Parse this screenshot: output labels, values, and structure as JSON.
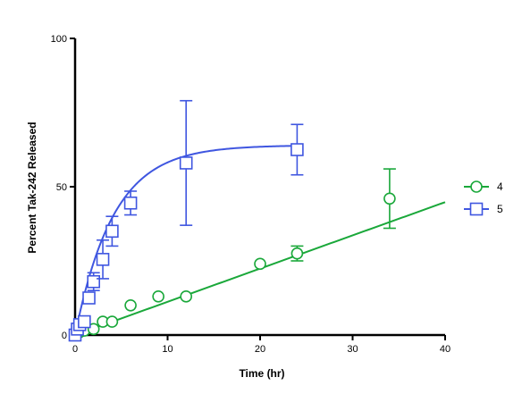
{
  "chart_data": {
    "type": "scatter",
    "title": "",
    "xlabel": "Time (hr)",
    "ylabel": "Percent Tak-242 Released",
    "xlim": [
      0,
      40
    ],
    "ylim": [
      0,
      100
    ],
    "x_ticks": [
      0,
      10,
      20,
      30,
      40
    ],
    "y_ticks": [
      0,
      50,
      100
    ],
    "grid": false,
    "legend_position": "right",
    "series": [
      {
        "name": "4",
        "marker": "circle",
        "color": "#1aa83a",
        "points": [
          {
            "x": 0.25,
            "y": 0.5
          },
          {
            "x": 0.5,
            "y": 1
          },
          {
            "x": 1,
            "y": 1.5
          },
          {
            "x": 2,
            "y": 2
          },
          {
            "x": 3,
            "y": 4.5
          },
          {
            "x": 4,
            "y": 4.5
          },
          {
            "x": 6,
            "y": 10
          },
          {
            "x": 9,
            "y": 13
          },
          {
            "x": 12,
            "y": 13
          },
          {
            "x": 20,
            "y": 24
          },
          {
            "x": 24,
            "y": 27.5,
            "err": 2.5
          },
          {
            "x": 34,
            "y": 46,
            "err": 10
          }
        ],
        "fit": {
          "type": "linear",
          "slope": 1.12,
          "intercept": 0,
          "x_range": [
            0,
            40
          ]
        }
      },
      {
        "name": "5",
        "marker": "square",
        "color": "#3f56e0",
        "points": [
          {
            "x": 0,
            "y": 0
          },
          {
            "x": 0.25,
            "y": 2
          },
          {
            "x": 0.5,
            "y": 3.5
          },
          {
            "x": 1,
            "y": 4.5
          },
          {
            "x": 1.5,
            "y": 12.5
          },
          {
            "x": 2,
            "y": 18,
            "err": 3
          },
          {
            "x": 3,
            "y": 25.5,
            "err": 6.5
          },
          {
            "x": 4,
            "y": 35,
            "err": 5
          },
          {
            "x": 6,
            "y": 44.5,
            "err": 4
          },
          {
            "x": 12,
            "y": 58,
            "err": 21
          },
          {
            "x": 24,
            "y": 62.5,
            "err": 8.5
          }
        ],
        "fit": {
          "type": "one-phase-association",
          "plateau": 64,
          "k": 0.24,
          "x_range": [
            0,
            24
          ]
        }
      }
    ]
  }
}
